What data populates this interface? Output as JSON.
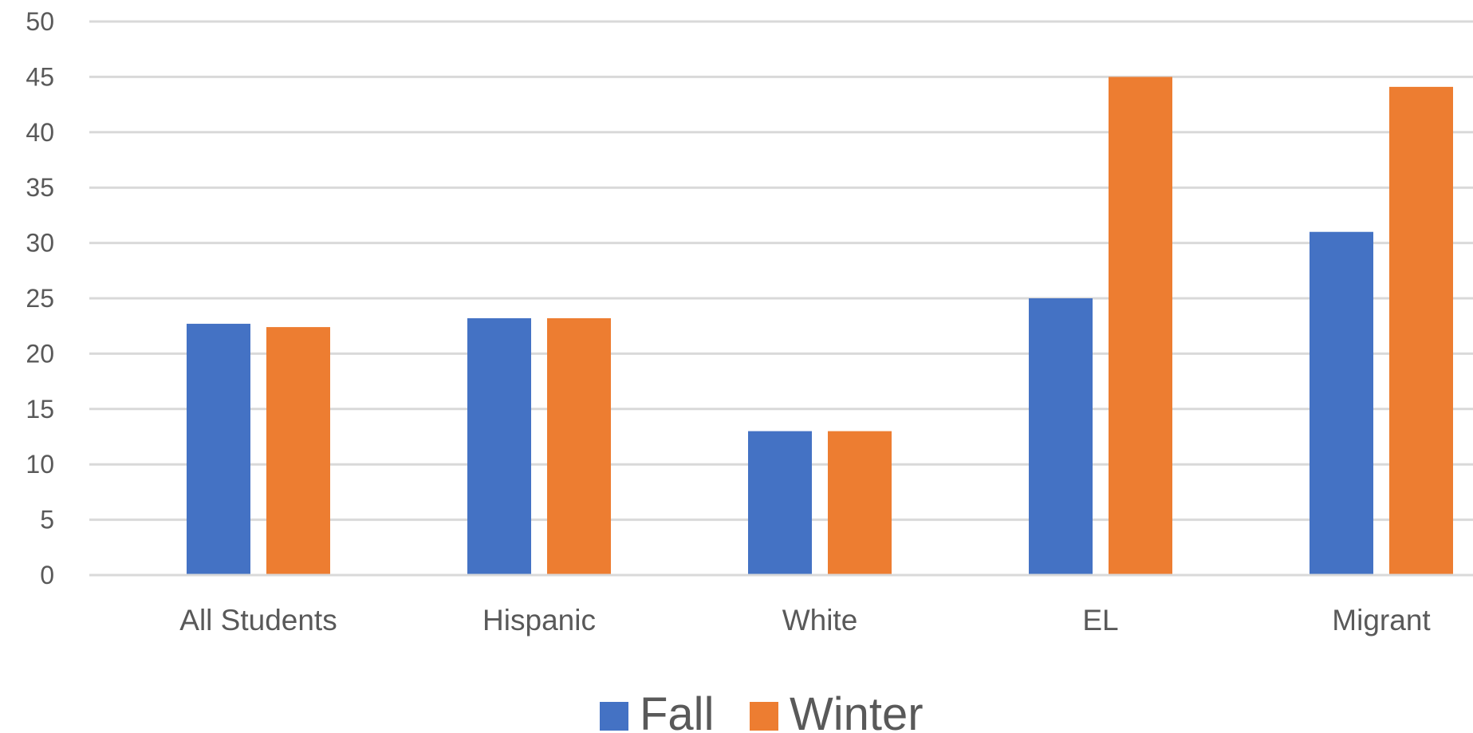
{
  "chart_data": {
    "type": "bar",
    "title": "",
    "xlabel": "",
    "ylabel": "",
    "categories": [
      "All Students",
      "Hispanic",
      "White",
      "EL",
      "Migrant"
    ],
    "series": [
      {
        "name": "Fall",
        "color": "#4472c4",
        "values": [
          22.7,
          23.2,
          13.0,
          25.0,
          31.0
        ]
      },
      {
        "name": "Winter",
        "color": "#ed7d31",
        "values": [
          22.4,
          23.2,
          13.0,
          45.0,
          44.1
        ]
      }
    ],
    "ylim": [
      0,
      50
    ],
    "yticks": [
      0,
      5,
      10,
      15,
      20,
      25,
      30,
      35,
      40,
      45,
      50
    ],
    "grid": true,
    "legend": "bottom-center"
  }
}
